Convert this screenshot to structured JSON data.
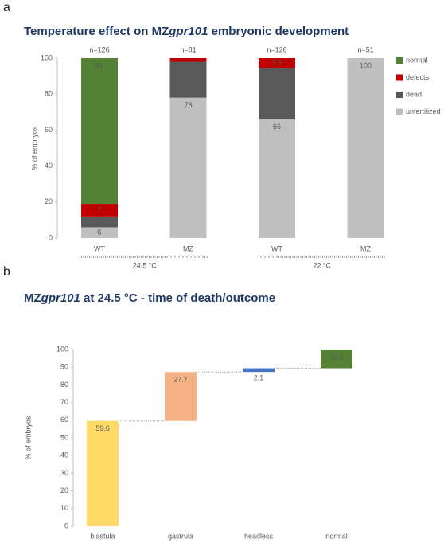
{
  "panel_labels": [
    "a",
    "b"
  ],
  "chart_data": [
    {
      "type": "stacked-bar",
      "title": [
        "Temperature effect on MZ",
        "gpr101",
        " embryonic development"
      ],
      "ylabel": "% of embryos",
      "categories": [
        "WT",
        "MZ",
        "WT",
        "MZ"
      ],
      "n_labels": [
        "n=126",
        "n=81",
        "n=126",
        "n=51"
      ],
      "groups": [
        {
          "label": "24.5 °C",
          "span": [
            0,
            1
          ]
        },
        {
          "label": "22 °C",
          "span": [
            2,
            3
          ]
        }
      ],
      "series": [
        {
          "name": "unfertilized",
          "color": "#bfbfbf",
          "values": [
            6,
            78,
            66,
            100
          ]
        },
        {
          "name": "dead",
          "color": "#595959",
          "values": [
            6,
            20,
            28.5,
            null
          ]
        },
        {
          "name": "defects",
          "color": "#c00000",
          "values": [
            7,
            2,
            5.5,
            null
          ],
          "value_labels": [
            "7",
            null,
            "5.5",
            null
          ]
        },
        {
          "name": "normal",
          "color": "#548235",
          "values": [
            81,
            null,
            null,
            null
          ]
        }
      ],
      "ylim": [
        0,
        100
      ],
      "yticks": [
        0,
        20,
        40,
        60,
        80,
        100
      ],
      "legend": "right"
    },
    {
      "type": "waterfall",
      "title": [
        "MZ",
        "gpr101",
        " at 24.5 °C - time of death/outcome"
      ],
      "ylabel": "% of embryos",
      "categories": [
        "blastula",
        "gastrula",
        "headless",
        "normal"
      ],
      "values": [
        59.6,
        27.7,
        2.1,
        10.6
      ],
      "colors": [
        "#ffd966",
        "#f4b183",
        "#4472c4",
        "#548235"
      ],
      "ylim": [
        0,
        100
      ],
      "yticks": [
        0,
        10,
        20,
        30,
        40,
        50,
        60,
        70,
        80,
        90,
        100
      ]
    }
  ]
}
